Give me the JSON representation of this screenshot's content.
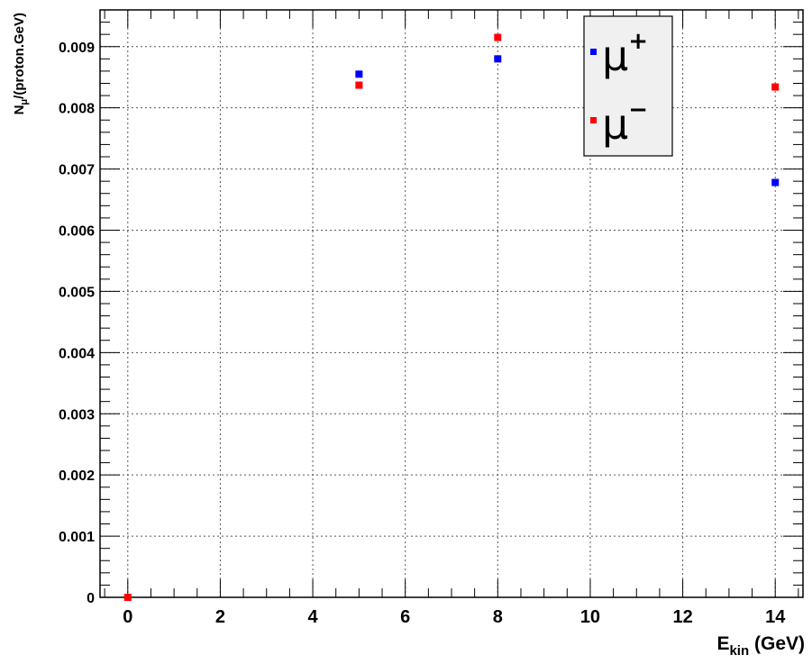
{
  "chart_data": {
    "type": "scatter",
    "title": "",
    "xlabel": {
      "main": "E",
      "sub": "kin",
      "unit": " (GeV)"
    },
    "ylabel": {
      "main": "N",
      "sub": "μ",
      "rest": "/(proton.GeV)"
    },
    "xlim": [
      -0.6,
      14.6
    ],
    "ylim": [
      0,
      0.0096
    ],
    "grid": true,
    "legend_position": "top-right",
    "x_ticks": [
      0,
      2,
      4,
      6,
      8,
      10,
      12,
      14
    ],
    "x_tick_labels": [
      "0",
      "2",
      "4",
      "6",
      "8",
      "10",
      "12",
      "14"
    ],
    "y_ticks": [
      0,
      0.001,
      0.002,
      0.003,
      0.004,
      0.005,
      0.006,
      0.007,
      0.008,
      0.009
    ],
    "y_tick_labels": [
      "0",
      "0.001",
      "0.002",
      "0.003",
      "0.004",
      "0.005",
      "0.006",
      "0.007",
      "0.008",
      "0.009"
    ],
    "series": [
      {
        "name": "μ+",
        "label_base": "μ",
        "label_sup": "+",
        "color": "#0000ff",
        "x": [
          5,
          8,
          14
        ],
        "y": [
          0.00855,
          0.0088,
          0.00678
        ]
      },
      {
        "name": "μ−",
        "label_base": "μ",
        "label_sup": "−",
        "color": "#ff0000",
        "x": [
          0,
          5,
          8,
          14
        ],
        "y": [
          0.0,
          0.00837,
          0.00915,
          0.00834
        ]
      }
    ]
  }
}
